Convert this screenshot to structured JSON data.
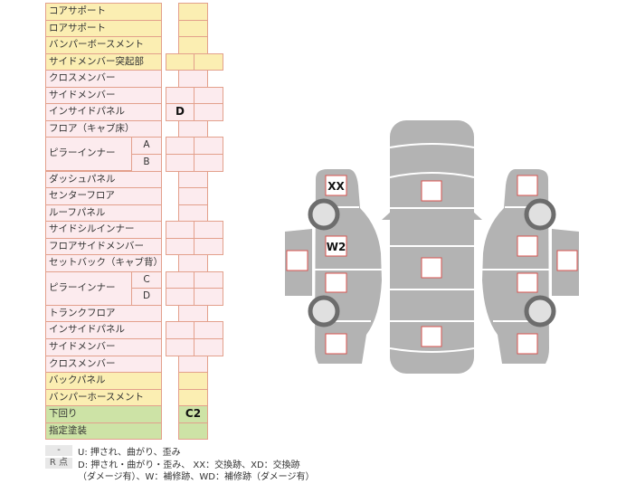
{
  "rows": [
    {
      "label": "コアサポート",
      "color": "y",
      "cells": 1
    },
    {
      "label": "ロアサポート",
      "color": "y",
      "cells": 1
    },
    {
      "label": "バンパーボースメント",
      "color": "y",
      "cells": 1
    },
    {
      "label": "サイドメンバー突起部",
      "color": "y",
      "cells": 2
    },
    {
      "label": "クロスメンバー",
      "color": "p",
      "cells": 1
    },
    {
      "label": "サイドメンバー",
      "color": "p",
      "cells": 2
    },
    {
      "label": "インサイドパネル",
      "color": "p",
      "cells": 2,
      "marks": [
        "D",
        ""
      ]
    },
    {
      "label": "フロア（キャブ床）",
      "color": "p",
      "cells": 1
    },
    {
      "label": "ピラーインナー",
      "color": "p",
      "cells": 2,
      "sub": "A",
      "span": 2
    },
    {
      "label": "",
      "color": "p",
      "cells": 2,
      "sub": "B",
      "cont": true
    },
    {
      "label": "ダッシュパネル",
      "color": "p",
      "cells": 1
    },
    {
      "label": "センターフロア",
      "color": "p",
      "cells": 1
    },
    {
      "label": "ルーフパネル",
      "color": "p",
      "cells": 1
    },
    {
      "label": "サイドシルインナー",
      "color": "p",
      "cells": 2
    },
    {
      "label": "フロアサイドメンバー",
      "color": "p",
      "cells": 2
    },
    {
      "label": "セットバック（キャブ背）",
      "color": "p",
      "cells": 1
    },
    {
      "label": "ピラーインナー",
      "color": "p",
      "cells": 2,
      "sub": "C",
      "span": 2
    },
    {
      "label": "",
      "color": "p",
      "cells": 2,
      "sub": "D",
      "cont": true
    },
    {
      "label": "トランクフロア",
      "color": "p",
      "cells": 1
    },
    {
      "label": "インサイドパネル",
      "color": "p",
      "cells": 2
    },
    {
      "label": "サイドメンバー",
      "color": "p",
      "cells": 2
    },
    {
      "label": "クロスメンバー",
      "color": "p",
      "cells": 1
    },
    {
      "label": "バックパネル",
      "color": "y",
      "cells": 1
    },
    {
      "label": "バンパーホースメント",
      "color": "y",
      "cells": 1
    },
    {
      "label": "下回り",
      "color": "g",
      "cells": 1,
      "marks": [
        "C2"
      ]
    },
    {
      "label": "指定塗装",
      "color": "g",
      "cells": 1
    }
  ],
  "legend": {
    "dash_key": "-",
    "dash_text": "U: 押され、曲がり、歪み",
    "r_key": "R 点",
    "r_text1": "D: 押され・曲がり・歪み、 XX：交換跡、XD：交換跡",
    "r_text2": "（ダメージ有）、W：補修跡、WD：補修跡（ダメージ有）"
  },
  "diagram": {
    "body_color": "#b3b3b3",
    "box_border": "#d9534f",
    "marks": {
      "left_front": "XX",
      "left_front_door": "W2"
    }
  }
}
